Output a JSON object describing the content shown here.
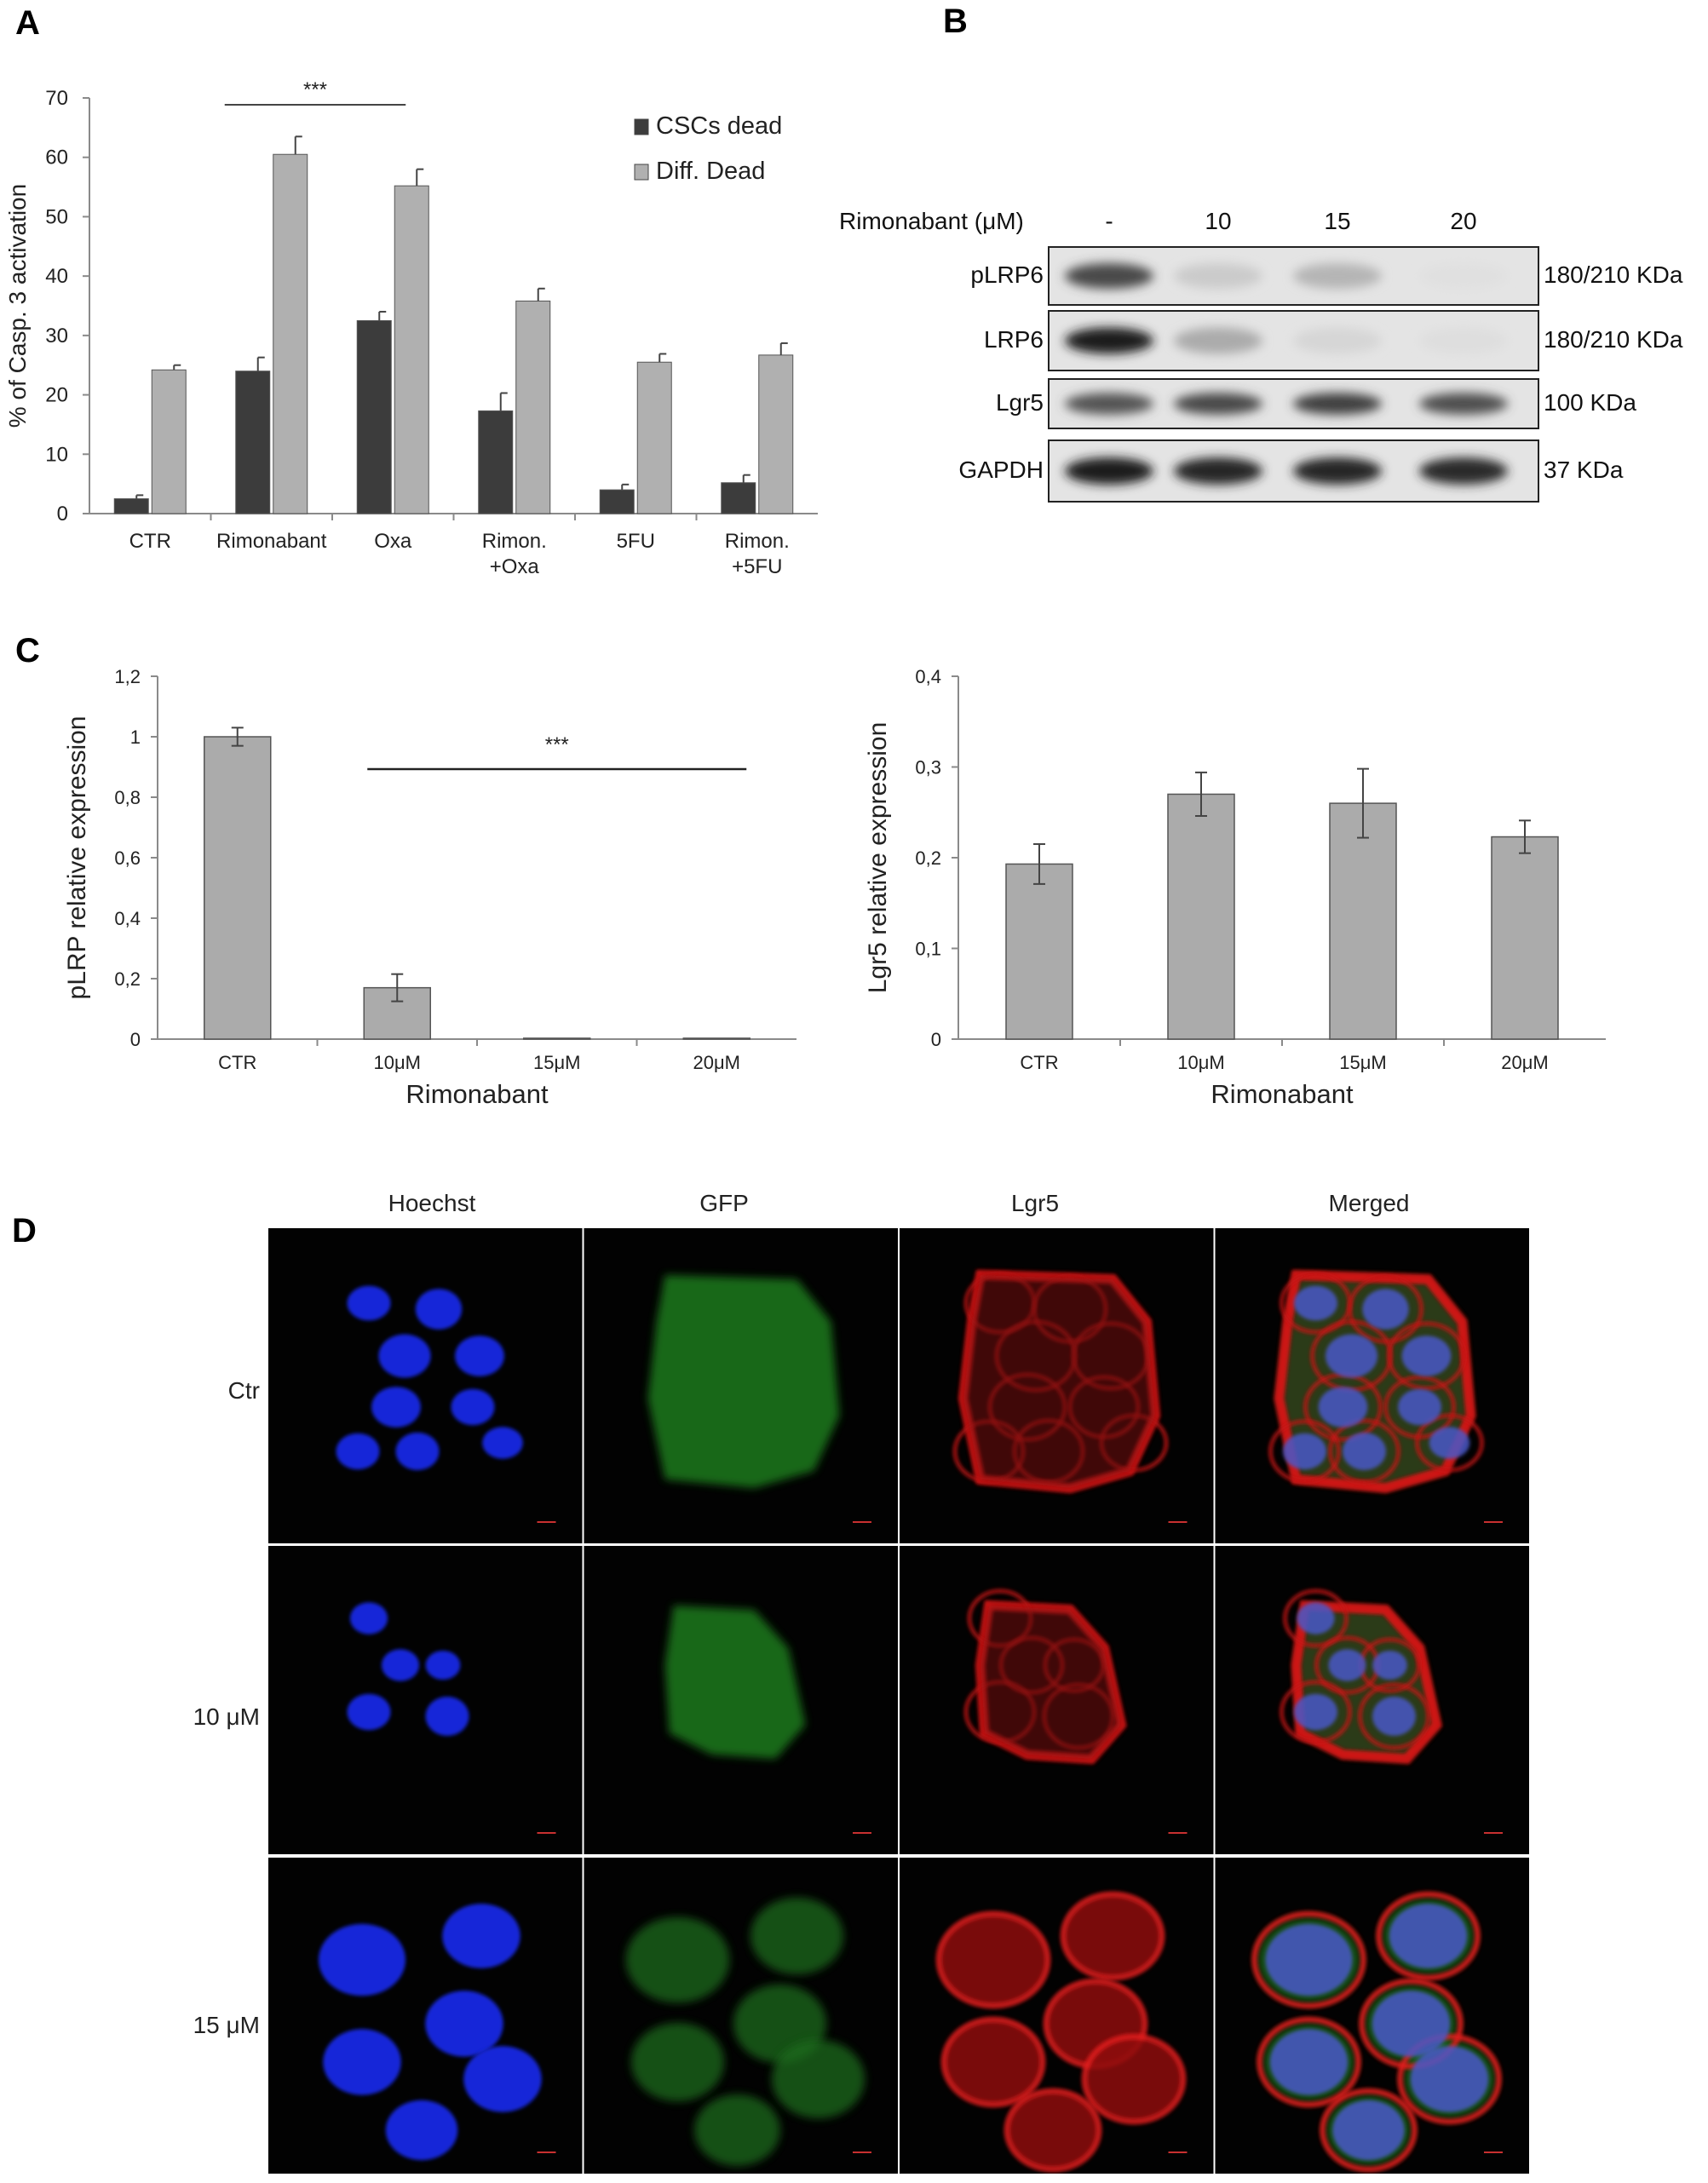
{
  "panels": {
    "a": "A",
    "b": "B",
    "c": "C",
    "d": "D"
  },
  "chart_data": [
    {
      "type": "bar",
      "categories": [
        "CTR",
        "Rimonabant",
        "Oxa",
        "Rimon.\n+Oxa",
        "5FU",
        "Rimon.\n+5FU"
      ],
      "series": [
        {
          "name": "CSCs dead",
          "values": [
            2.5,
            24,
            32.5,
            17.3,
            4,
            5.2
          ],
          "errors": [
            0.6,
            2.3,
            1.5,
            3.0,
            0.9,
            1.3
          ],
          "color": "#3c3c3c"
        },
        {
          "name": "Diff. Dead",
          "values": [
            24.2,
            60.5,
            55.2,
            35.8,
            25.5,
            26.7
          ],
          "errors": [
            0.8,
            3.0,
            2.8,
            2.1,
            1.4,
            2.0
          ],
          "color": "#b0b0b0"
        }
      ],
      "ylabel": "% of Casp. 3 activation",
      "ylim": [
        0,
        70
      ],
      "yticks": [
        "0",
        "10",
        "20",
        "30",
        "40",
        "50",
        "60",
        "70"
      ],
      "significance": "***",
      "legend": "top-right"
    },
    {
      "type": "bar",
      "categories": [
        "CTR",
        "10μM",
        "15μM",
        "20μM"
      ],
      "values": [
        1.0,
        0.17,
        0.003,
        0.003
      ],
      "errors": [
        0.03,
        0.045,
        0,
        0
      ],
      "xlabel": "Rimonabant",
      "ylabel": "pLRP relative expression",
      "ylim": [
        0,
        1.2
      ],
      "yticks": [
        "0",
        "0,2",
        "0,4",
        "0,6",
        "0,8",
        "1",
        "1,2"
      ],
      "significance": "***"
    },
    {
      "type": "bar",
      "categories": [
        "CTR",
        "10μM",
        "15μM",
        "20μM"
      ],
      "values": [
        0.193,
        0.27,
        0.26,
        0.223
      ],
      "errors": [
        0.022,
        0.024,
        0.038,
        0.018
      ],
      "xlabel": "Rimonabant",
      "ylabel": "Lgr5 relative expression",
      "ylim": [
        0,
        0.4
      ],
      "yticks": [
        "0",
        "0,1",
        "0,2",
        "0,3",
        "0,4"
      ]
    }
  ],
  "western": {
    "treatment_label": "Rimonabant  (μM)",
    "lanes": [
      "-",
      "10",
      "15",
      "20"
    ],
    "rows": [
      {
        "name": "pLRP6",
        "size": "180/210 KDa",
        "intensity": [
          0.75,
          0.15,
          0.25,
          0.05
        ]
      },
      {
        "name": "LRP6",
        "size": "180/210 KDa",
        "intensity": [
          0.95,
          0.3,
          0.1,
          0.06
        ]
      },
      {
        "name": "Lgr5",
        "size": "100 KDa",
        "intensity": [
          0.7,
          0.75,
          0.8,
          0.72
        ]
      },
      {
        "name": "GAPDH",
        "size": "37 KDa",
        "intensity": [
          0.95,
          0.92,
          0.92,
          0.9
        ]
      }
    ]
  },
  "micro": {
    "columns": [
      "Hoechst",
      "GFP",
      "Lgr5",
      "Merged"
    ],
    "rows": [
      "Ctr",
      "10 μM",
      "15 μM"
    ]
  }
}
